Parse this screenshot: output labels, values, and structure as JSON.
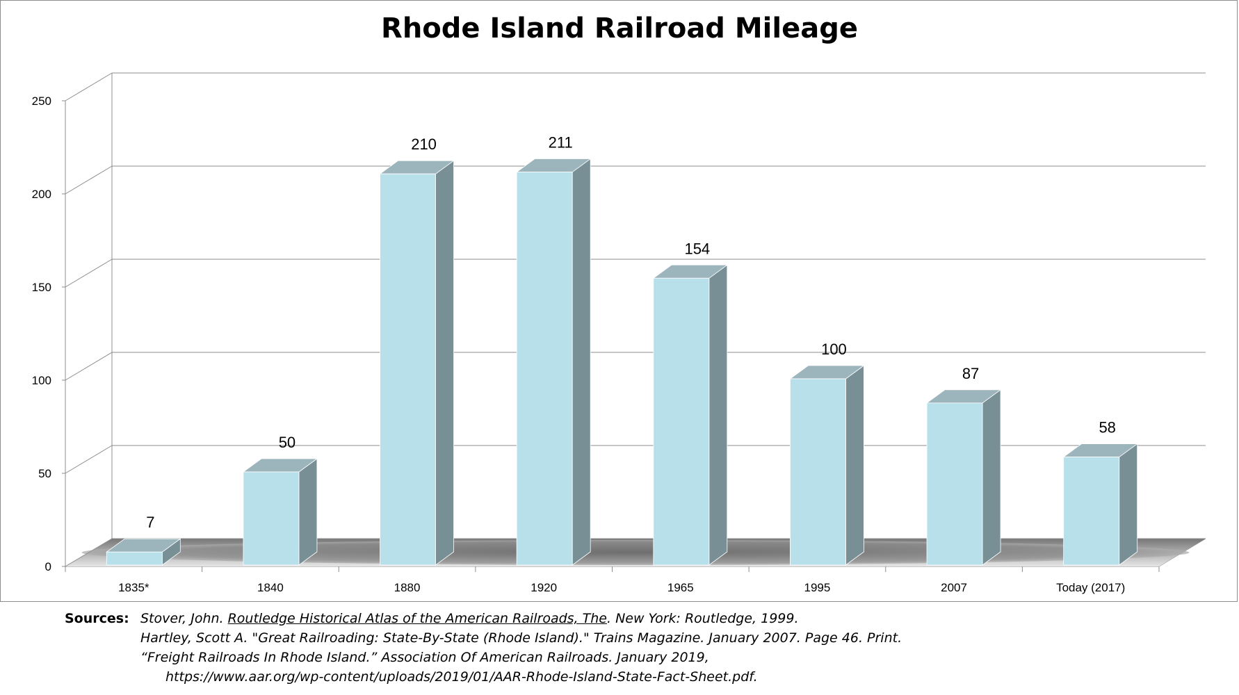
{
  "chart_data": {
    "type": "bar",
    "title": "Rhode Island Railroad Mileage",
    "xlabel": "",
    "ylabel": "",
    "categories": [
      "1835*",
      "1840",
      "1880",
      "1920",
      "1965",
      "1995",
      "2007",
      "Today  (2017)"
    ],
    "values": [
      7,
      50,
      210,
      211,
      154,
      100,
      87,
      58
    ],
    "data_labels": [
      "7",
      "50",
      "210",
      "211",
      "154",
      "100",
      "87",
      "58"
    ],
    "ylim": [
      0,
      250
    ],
    "yticks": [
      0,
      50,
      100,
      150,
      200,
      250
    ],
    "grid": true,
    "legend": "none",
    "style": "3d-column",
    "colors": {
      "front": "#b8e0ea",
      "side": "#798f96",
      "top": "#9cb4bc",
      "grid": "#8c8c8c"
    }
  },
  "sources": {
    "label": "Sources:",
    "ref1_prefix": "Stover, John. ",
    "ref1_title": "Routledge Historical Atlas of the American Railroads, The",
    "ref1_suffix": ". New York: Routledge, 1999.",
    "ref2": "Hartley, Scott A. \"Great Railroading: State-By-State (Rhode Island).\" Trains Magazine. January 2007. Page 46. Print.",
    "ref3": "“Freight Railroads In Rhode Island.” Association Of American Railroads. January 2019,",
    "ref3_url": "https://www.aar.org/wp-content/uploads/2019/01/AAR-Rhode-Island-State-Fact-Sheet.pdf."
  }
}
